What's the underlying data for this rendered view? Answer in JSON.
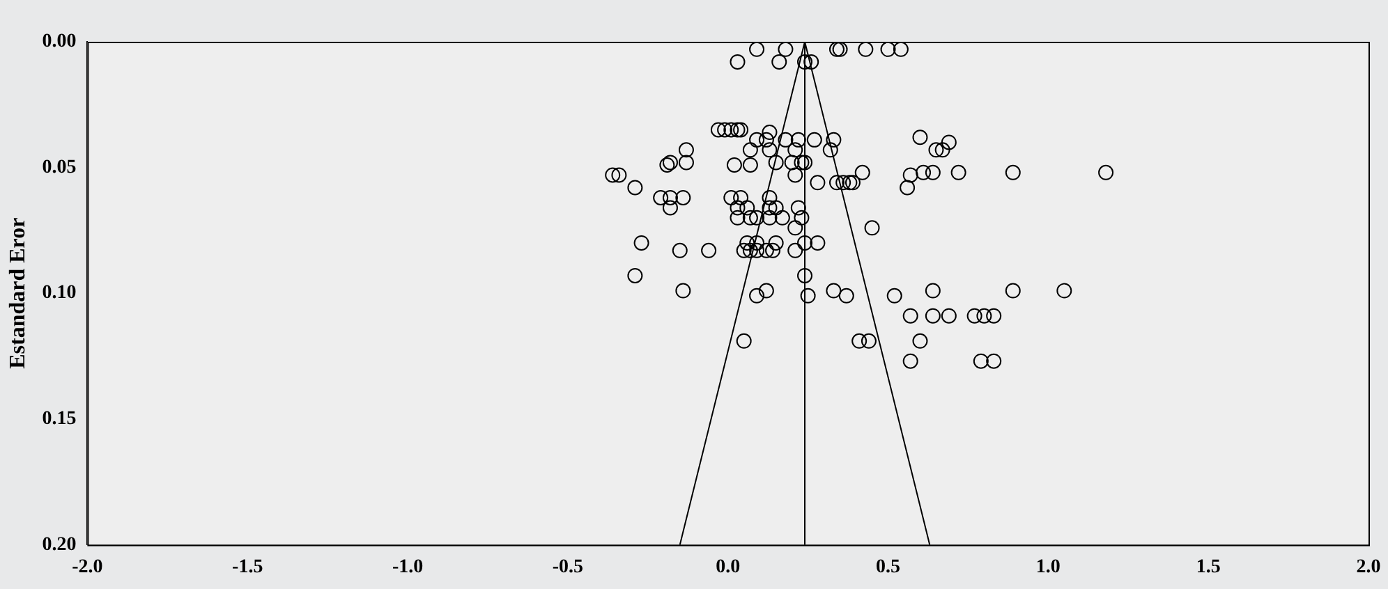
{
  "chart_data": {
    "type": "scatter",
    "ylabel": "Estandard Eror",
    "xlim": [
      -2,
      2
    ],
    "xticks": [
      {
        "value": -2,
        "label": "-2.0"
      },
      {
        "value": -1.5,
        "label": "-1.5"
      },
      {
        "value": -1,
        "label": "-1.0"
      },
      {
        "value": -0.5,
        "label": "-0.5"
      },
      {
        "value": 0,
        "label": "0.0"
      },
      {
        "value": 0.5,
        "label": "0.5"
      },
      {
        "value": 1,
        "label": "1.0"
      },
      {
        "value": 1.5,
        "label": "1.5"
      },
      {
        "value": 2,
        "label": "2.0"
      }
    ],
    "ylim": [
      0.2,
      0
    ],
    "yticks": [
      {
        "value": 0,
        "label": "0.00"
      },
      {
        "value": 0.05,
        "label": "0.05"
      },
      {
        "value": 0.1,
        "label": "0.10"
      },
      {
        "value": 0.15,
        "label": "0.15"
      },
      {
        "value": 0.2,
        "label": "0.20"
      }
    ],
    "grid": false,
    "legend": false,
    "ref_lines": [
      {
        "axis": "x",
        "value": 0.24,
        "color": "#000000"
      }
    ],
    "series": [
      {
        "color": "#000000",
        "marker": "circle",
        "x": [
          0.09,
          0.18,
          0.34,
          0.35,
          0.43,
          0.5,
          0.54,
          0.03,
          0.16,
          0.24,
          0.26,
          -0.03,
          -0.01,
          0.01,
          0.03,
          0.04,
          0.13,
          0.12,
          0.09,
          0.18,
          0.22,
          0.27,
          0.33,
          0.6,
          0.69,
          0.67,
          -0.13,
          0.21,
          0.32,
          0.07,
          0.13,
          0.65,
          -0.18,
          -0.19,
          -0.13,
          0.02,
          0.07,
          0.15,
          0.2,
          0.23,
          0.24,
          0.21,
          -0.36,
          -0.34,
          -0.29,
          0.42,
          0.57,
          0.56,
          0.61,
          0.64,
          0.72,
          0.89,
          1.18,
          0.28,
          0.34,
          0.36,
          0.38,
          0.39,
          -0.21,
          -0.18,
          -0.14,
          -0.18,
          0.01,
          0.04,
          0.13,
          0.03,
          0.06,
          0.13,
          0.15,
          0.22,
          0.03,
          0.07,
          0.09,
          0.13,
          0.17,
          0.23,
          0.21,
          0.45,
          -0.27,
          0.06,
          0.09,
          0.15,
          0.24,
          0.28,
          -0.15,
          -0.06,
          0.05,
          0.07,
          0.09,
          0.12,
          0.14,
          0.21,
          -0.29,
          0.24,
          -0.14,
          0.12,
          0.33,
          0.64,
          0.89,
          1.05,
          0.09,
          0.25,
          0.37,
          0.52,
          0.57,
          0.64,
          0.69,
          0.77,
          0.8,
          0.83,
          0.05,
          0.41,
          0.44,
          0.6,
          0.57,
          0.79,
          0.83
        ],
        "values": [
          0.003,
          0.003,
          0.003,
          0.003,
          0.003,
          0.003,
          0.003,
          0.008,
          0.008,
          0.008,
          0.008,
          0.035,
          0.035,
          0.035,
          0.035,
          0.035,
          0.036,
          0.039,
          0.039,
          0.039,
          0.039,
          0.039,
          0.039,
          0.038,
          0.04,
          0.043,
          0.043,
          0.043,
          0.043,
          0.043,
          0.043,
          0.043,
          0.048,
          0.049,
          0.048,
          0.049,
          0.049,
          0.048,
          0.048,
          0.048,
          0.048,
          0.053,
          0.053,
          0.053,
          0.058,
          0.052,
          0.053,
          0.058,
          0.052,
          0.052,
          0.052,
          0.052,
          0.052,
          0.056,
          0.056,
          0.056,
          0.056,
          0.056,
          0.062,
          0.062,
          0.062,
          0.066,
          0.062,
          0.062,
          0.062,
          0.066,
          0.066,
          0.066,
          0.066,
          0.066,
          0.07,
          0.07,
          0.07,
          0.07,
          0.07,
          0.07,
          0.074,
          0.074,
          0.08,
          0.08,
          0.08,
          0.08,
          0.08,
          0.08,
          0.083,
          0.083,
          0.083,
          0.083,
          0.083,
          0.083,
          0.083,
          0.083,
          0.093,
          0.093,
          0.099,
          0.099,
          0.099,
          0.099,
          0.099,
          0.099,
          0.101,
          0.101,
          0.101,
          0.101,
          0.109,
          0.109,
          0.109,
          0.109,
          0.109,
          0.109,
          0.119,
          0.119,
          0.119,
          0.119,
          0.127,
          0.127,
          0.127
        ]
      },
      {
        "type": "line",
        "color": "#000000",
        "x": [
          -0.15,
          0.24,
          0.63
        ],
        "values": [
          0.2,
          0,
          0.2
        ]
      }
    ]
  }
}
